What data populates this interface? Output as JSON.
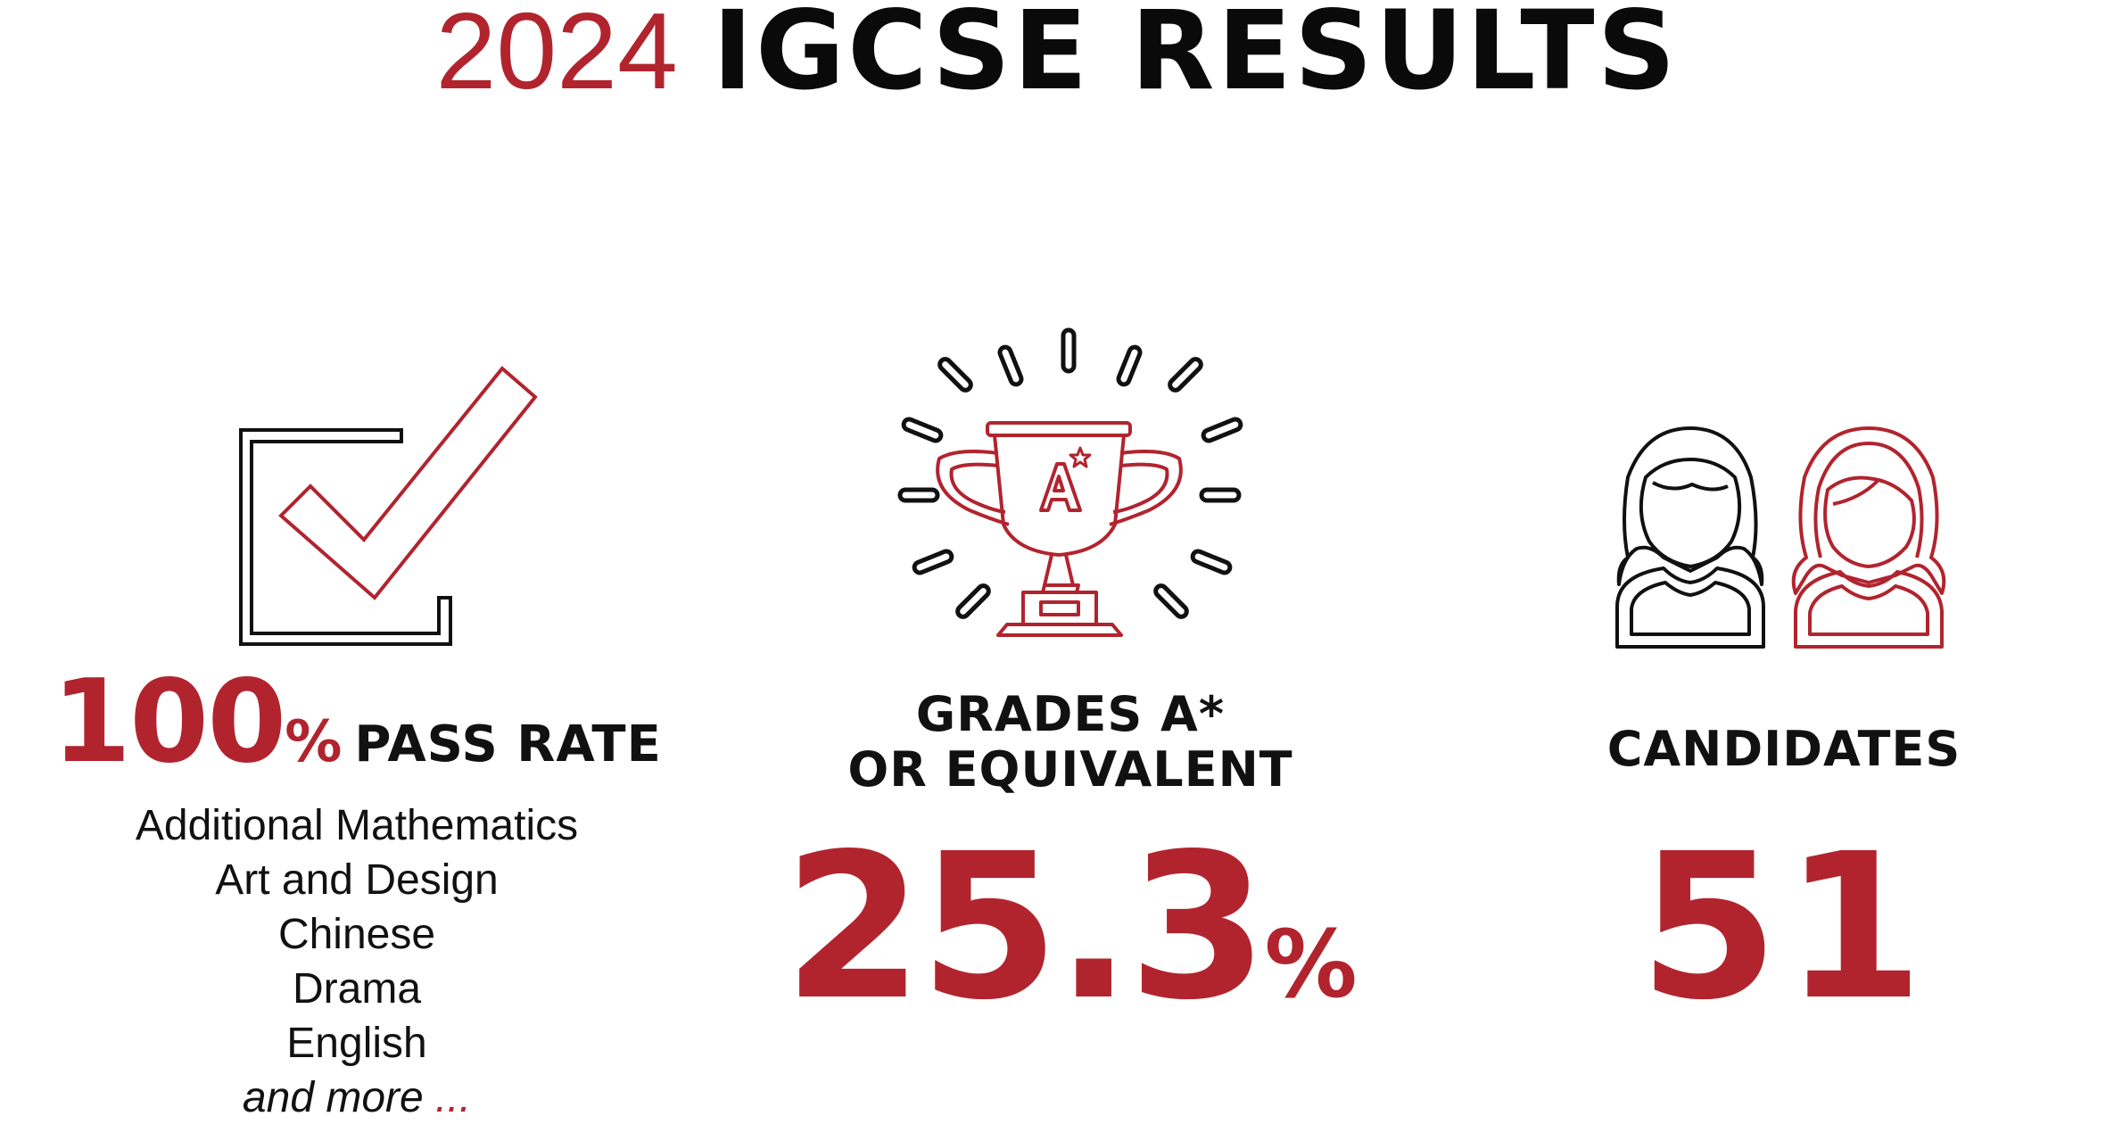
{
  "title": {
    "year": "2024",
    "rest": "IGCSE RESULTS"
  },
  "colors": {
    "accent": "#b1242e",
    "text": "#111111",
    "background": "#ffffff"
  },
  "icons": [
    "checkbox-icon",
    "trophy-icon",
    "students-icon"
  ],
  "pass_rate": {
    "number": "100",
    "percent_sign": "%",
    "label": "PASS RATE",
    "subjects": [
      "Additional Mathematics",
      "Art and Design",
      "Chinese",
      "Drama",
      "English"
    ],
    "more_text": "and more",
    "more_dots": "..."
  },
  "grades": {
    "label_line1": "GRADES A*",
    "label_line2": "OR EQUIVALENT",
    "value": "25.3",
    "percent_sign": "%"
  },
  "candidates": {
    "label": "CANDIDATES",
    "value": "51"
  }
}
